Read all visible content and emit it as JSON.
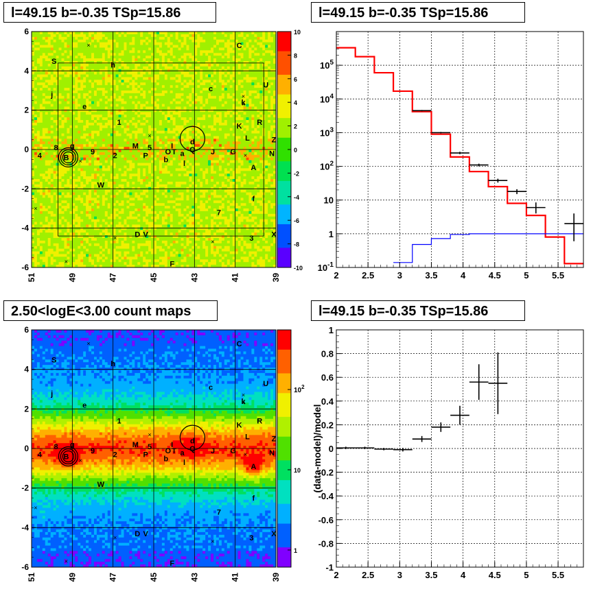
{
  "panels": {
    "tl_title": "l=49.15 b=-0.35 TSp=15.86",
    "tr_title": "l=49.15 b=-0.35 TSp=15.86",
    "bl_title": "2.50<logE<3.00 count maps",
    "br_title": "l=49.15 b=-0.35 TSp=15.86"
  },
  "chart_data": [
    {
      "type": "heatmap",
      "title": "l=49.15 b=-0.35 TSp=15.86",
      "xlim": [
        51,
        39
      ],
      "ylim": [
        -6,
        6
      ],
      "xticks": [
        "51",
        "49",
        "47",
        "45",
        "43",
        "41",
        "39"
      ],
      "yticks": [
        "-6",
        "-4",
        "-2",
        "0",
        "2",
        "4",
        "6"
      ],
      "colorbar": {
        "range": [
          -10,
          10
        ],
        "ticks": [
          "10",
          "8",
          "6",
          "4",
          "2",
          "0",
          "-2",
          "-4",
          "-6",
          "-8",
          "-10"
        ]
      },
      "colormap": [
        "#5a00ff",
        "#0050ff",
        "#00b4ff",
        "#00e0a0",
        "#00e050",
        "#30e000",
        "#a0f000",
        "#f0f000",
        "#ffb000",
        "#ff5000",
        "#ff0000"
      ],
      "source_labels": [
        {
          "t": "C",
          "l": 40.8,
          "b": 5.3
        },
        {
          "t": "S",
          "l": 49.9,
          "b": 4.5
        },
        {
          "t": "h",
          "l": 47.0,
          "b": 4.3
        },
        {
          "t": "U",
          "l": 39.5,
          "b": 3.3
        },
        {
          "t": "c",
          "l": 42.2,
          "b": 3.1
        },
        {
          "t": "j",
          "l": 50.0,
          "b": 2.8
        },
        {
          "t": "k",
          "l": 40.6,
          "b": 2.4
        },
        {
          "t": "e",
          "l": 48.4,
          "b": 2.2
        },
        {
          "t": "1",
          "l": 46.7,
          "b": 1.4
        },
        {
          "t": "R",
          "l": 39.8,
          "b": 1.4
        },
        {
          "t": "K",
          "l": 40.8,
          "b": 1.2
        },
        {
          "t": "L",
          "l": 40.4,
          "b": 0.6
        },
        {
          "t": "Z",
          "l": 39.1,
          "b": 0.5
        },
        {
          "t": "d",
          "l": 43.1,
          "b": 0.4
        },
        {
          "t": "M",
          "l": 45.9,
          "b": 0.2
        },
        {
          "t": "5",
          "l": 45.2,
          "b": 0.1
        },
        {
          "t": "I",
          "l": 44.1,
          "b": 0.2
        },
        {
          "t": "8",
          "l": 49.8,
          "b": 0.1
        },
        {
          "t": "g",
          "l": 49.0,
          "b": 0.2
        },
        {
          "t": "9",
          "l": 48.0,
          "b": -0.1
        },
        {
          "t": "O",
          "l": 44.3,
          "b": -0.1
        },
        {
          "t": "T",
          "l": 44.0,
          "b": -0.1
        },
        {
          "t": "a",
          "l": 43.6,
          "b": -0.2
        },
        {
          "t": "Q",
          "l": 43.1,
          "b": 0.0
        },
        {
          "t": "J",
          "l": 42.1,
          "b": -0.1
        },
        {
          "t": "G",
          "l": 41.1,
          "b": -0.1
        },
        {
          "t": "N",
          "l": 39.2,
          "b": -0.2
        },
        {
          "t": "4",
          "l": 50.6,
          "b": -0.3
        },
        {
          "t": "2",
          "l": 46.9,
          "b": -0.3
        },
        {
          "t": "P",
          "l": 45.4,
          "b": -0.3
        },
        {
          "t": "b",
          "l": 44.4,
          "b": -0.5
        },
        {
          "t": "l",
          "l": 43.5,
          "b": -0.7
        },
        {
          "t": "B",
          "l": 49.3,
          "b": -0.4
        },
        {
          "t": "A",
          "l": 40.1,
          "b": -0.9
        },
        {
          "t": "W",
          "l": 47.6,
          "b": -1.8
        },
        {
          "t": "f",
          "l": 40.1,
          "b": -2.5
        },
        {
          "t": "7",
          "l": 41.8,
          "b": -3.2
        },
        {
          "t": "D",
          "l": 45.8,
          "b": -4.3
        },
        {
          "t": "V",
          "l": 45.4,
          "b": -4.3
        },
        {
          "t": "3",
          "l": 40.2,
          "b": -4.5
        },
        {
          "t": "X",
          "l": 39.1,
          "b": -4.3
        },
        {
          "t": "F",
          "l": 44.1,
          "b": -5.8
        }
      ]
    },
    {
      "type": "line",
      "title": "l=49.15 b=-0.35 TSp=15.86",
      "xlim": [
        2,
        5.9
      ],
      "ylim": [
        0.1,
        1000000
      ],
      "yscale": "log",
      "xticks": [
        "2",
        "2.5",
        "3",
        "3.5",
        "4",
        "4.5",
        "5",
        "5.5"
      ],
      "yticks": [
        "10^-1",
        "1",
        "10",
        "10^2",
        "10^3",
        "10^4",
        "10^5"
      ],
      "grid": true,
      "bin_edges": [
        2.0,
        2.3,
        2.6,
        2.9,
        3.2,
        3.5,
        3.8,
        4.1,
        4.4,
        4.7,
        5.0,
        5.3,
        5.6,
        5.9
      ],
      "series": [
        {
          "color": "#ff0000",
          "values": [
            330000,
            180000,
            60000,
            17000,
            4200,
            900,
            190,
            70,
            25,
            8,
            3.5,
            0.8,
            0.13
          ]
        },
        {
          "color": "#0000ff",
          "values": [
            0.08,
            0.08,
            0.08,
            0.14,
            0.48,
            0.72,
            0.95,
            1,
            1,
            1,
            1,
            1,
            1
          ]
        }
      ],
      "points": {
        "color": "#000000",
        "x": [
          3.35,
          3.65,
          3.95,
          4.25,
          4.55,
          4.85,
          5.15,
          5.75
        ],
        "y": [
          4500,
          1000,
          250,
          110,
          38,
          18,
          6,
          2
        ],
        "ylow": [
          4300,
          950,
          230,
          100,
          33,
          15,
          4,
          0.6
        ],
        "yhigh": [
          4700,
          1050,
          270,
          120,
          43,
          21,
          8.5,
          4
        ]
      }
    },
    {
      "type": "heatmap",
      "title": "2.50<logE<3.00 count maps",
      "xlim": [
        51,
        39
      ],
      "ylim": [
        -6,
        6
      ],
      "xticks": [
        "51",
        "49",
        "47",
        "45",
        "43",
        "41",
        "39"
      ],
      "yticks": [
        "-6",
        "-4",
        "-2",
        "0",
        "2",
        "4",
        "6"
      ],
      "colorbar": {
        "scale": "log",
        "ticks": [
          "10^2",
          "10",
          "1"
        ]
      },
      "colormap": [
        "#8000ff",
        "#0060ff",
        "#00b0ff",
        "#00e0c0",
        "#00e060",
        "#50e000",
        "#b0f000",
        "#f0f000",
        "#ffb000",
        "#ff6000",
        "#ff0000"
      ]
    },
    {
      "type": "scatter",
      "title": "l=49.15 b=-0.35 TSp=15.86",
      "ylabel": "(data-model)/model",
      "xlim": [
        2,
        5.9
      ],
      "ylim": [
        -1,
        1
      ],
      "xticks": [
        "2",
        "2.5",
        "3",
        "3.5",
        "4",
        "4.5",
        "5",
        "5.5"
      ],
      "yticks": [
        "1",
        "0.8",
        "0.6",
        "0.4",
        "0.2",
        "0",
        "-0.2",
        "-0.4",
        "-0.6",
        "-0.8",
        "-1"
      ],
      "grid": true,
      "points": {
        "x": [
          2.15,
          2.45,
          2.75,
          3.05,
          3.35,
          3.65,
          3.95,
          4.25,
          4.55
        ],
        "y": [
          0.005,
          0.005,
          -0.005,
          -0.01,
          0.08,
          0.18,
          0.28,
          0.56,
          0.55
        ],
        "yerr": [
          0.01,
          0.01,
          0.01,
          0.015,
          0.025,
          0.04,
          0.08,
          0.15,
          0.26
        ],
        "xerr": 0.15
      }
    }
  ]
}
